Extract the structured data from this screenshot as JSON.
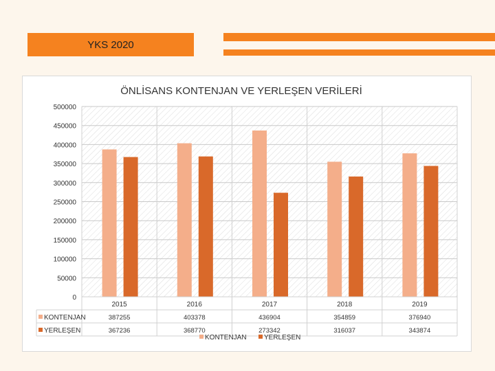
{
  "slide": {
    "title": "YKS 2020",
    "accent_color": "#f5821f"
  },
  "chart_data": {
    "type": "bar",
    "title": "ÖNLİSANS KONTENJAN VE YERLEŞEN VERİLERİ",
    "categories": [
      "2015",
      "2016",
      "2017",
      "2018",
      "2019"
    ],
    "series": [
      {
        "name": "KONTENJAN",
        "values": [
          387255,
          403378,
          436904,
          354859,
          376940
        ],
        "color": "#f4ae8a",
        "labels": [
          "387255",
          "403378",
          "436904",
          "354859",
          "376940"
        ]
      },
      {
        "name": "YERLEŞEN",
        "values": [
          367236,
          368770,
          273342,
          316037,
          343874
        ],
        "color": "#d9692a",
        "labels": [
          "367236",
          "368770",
          "273342",
          "316037",
          "343874"
        ]
      }
    ],
    "ylim": [
      0,
      500000
    ],
    "yticks": [
      "0",
      "50000",
      "100000",
      "150000",
      "200000",
      "250000",
      "300000",
      "350000",
      "400000",
      "450000",
      "500000"
    ],
    "grid": true,
    "legend": "bottom",
    "data_table": true
  }
}
